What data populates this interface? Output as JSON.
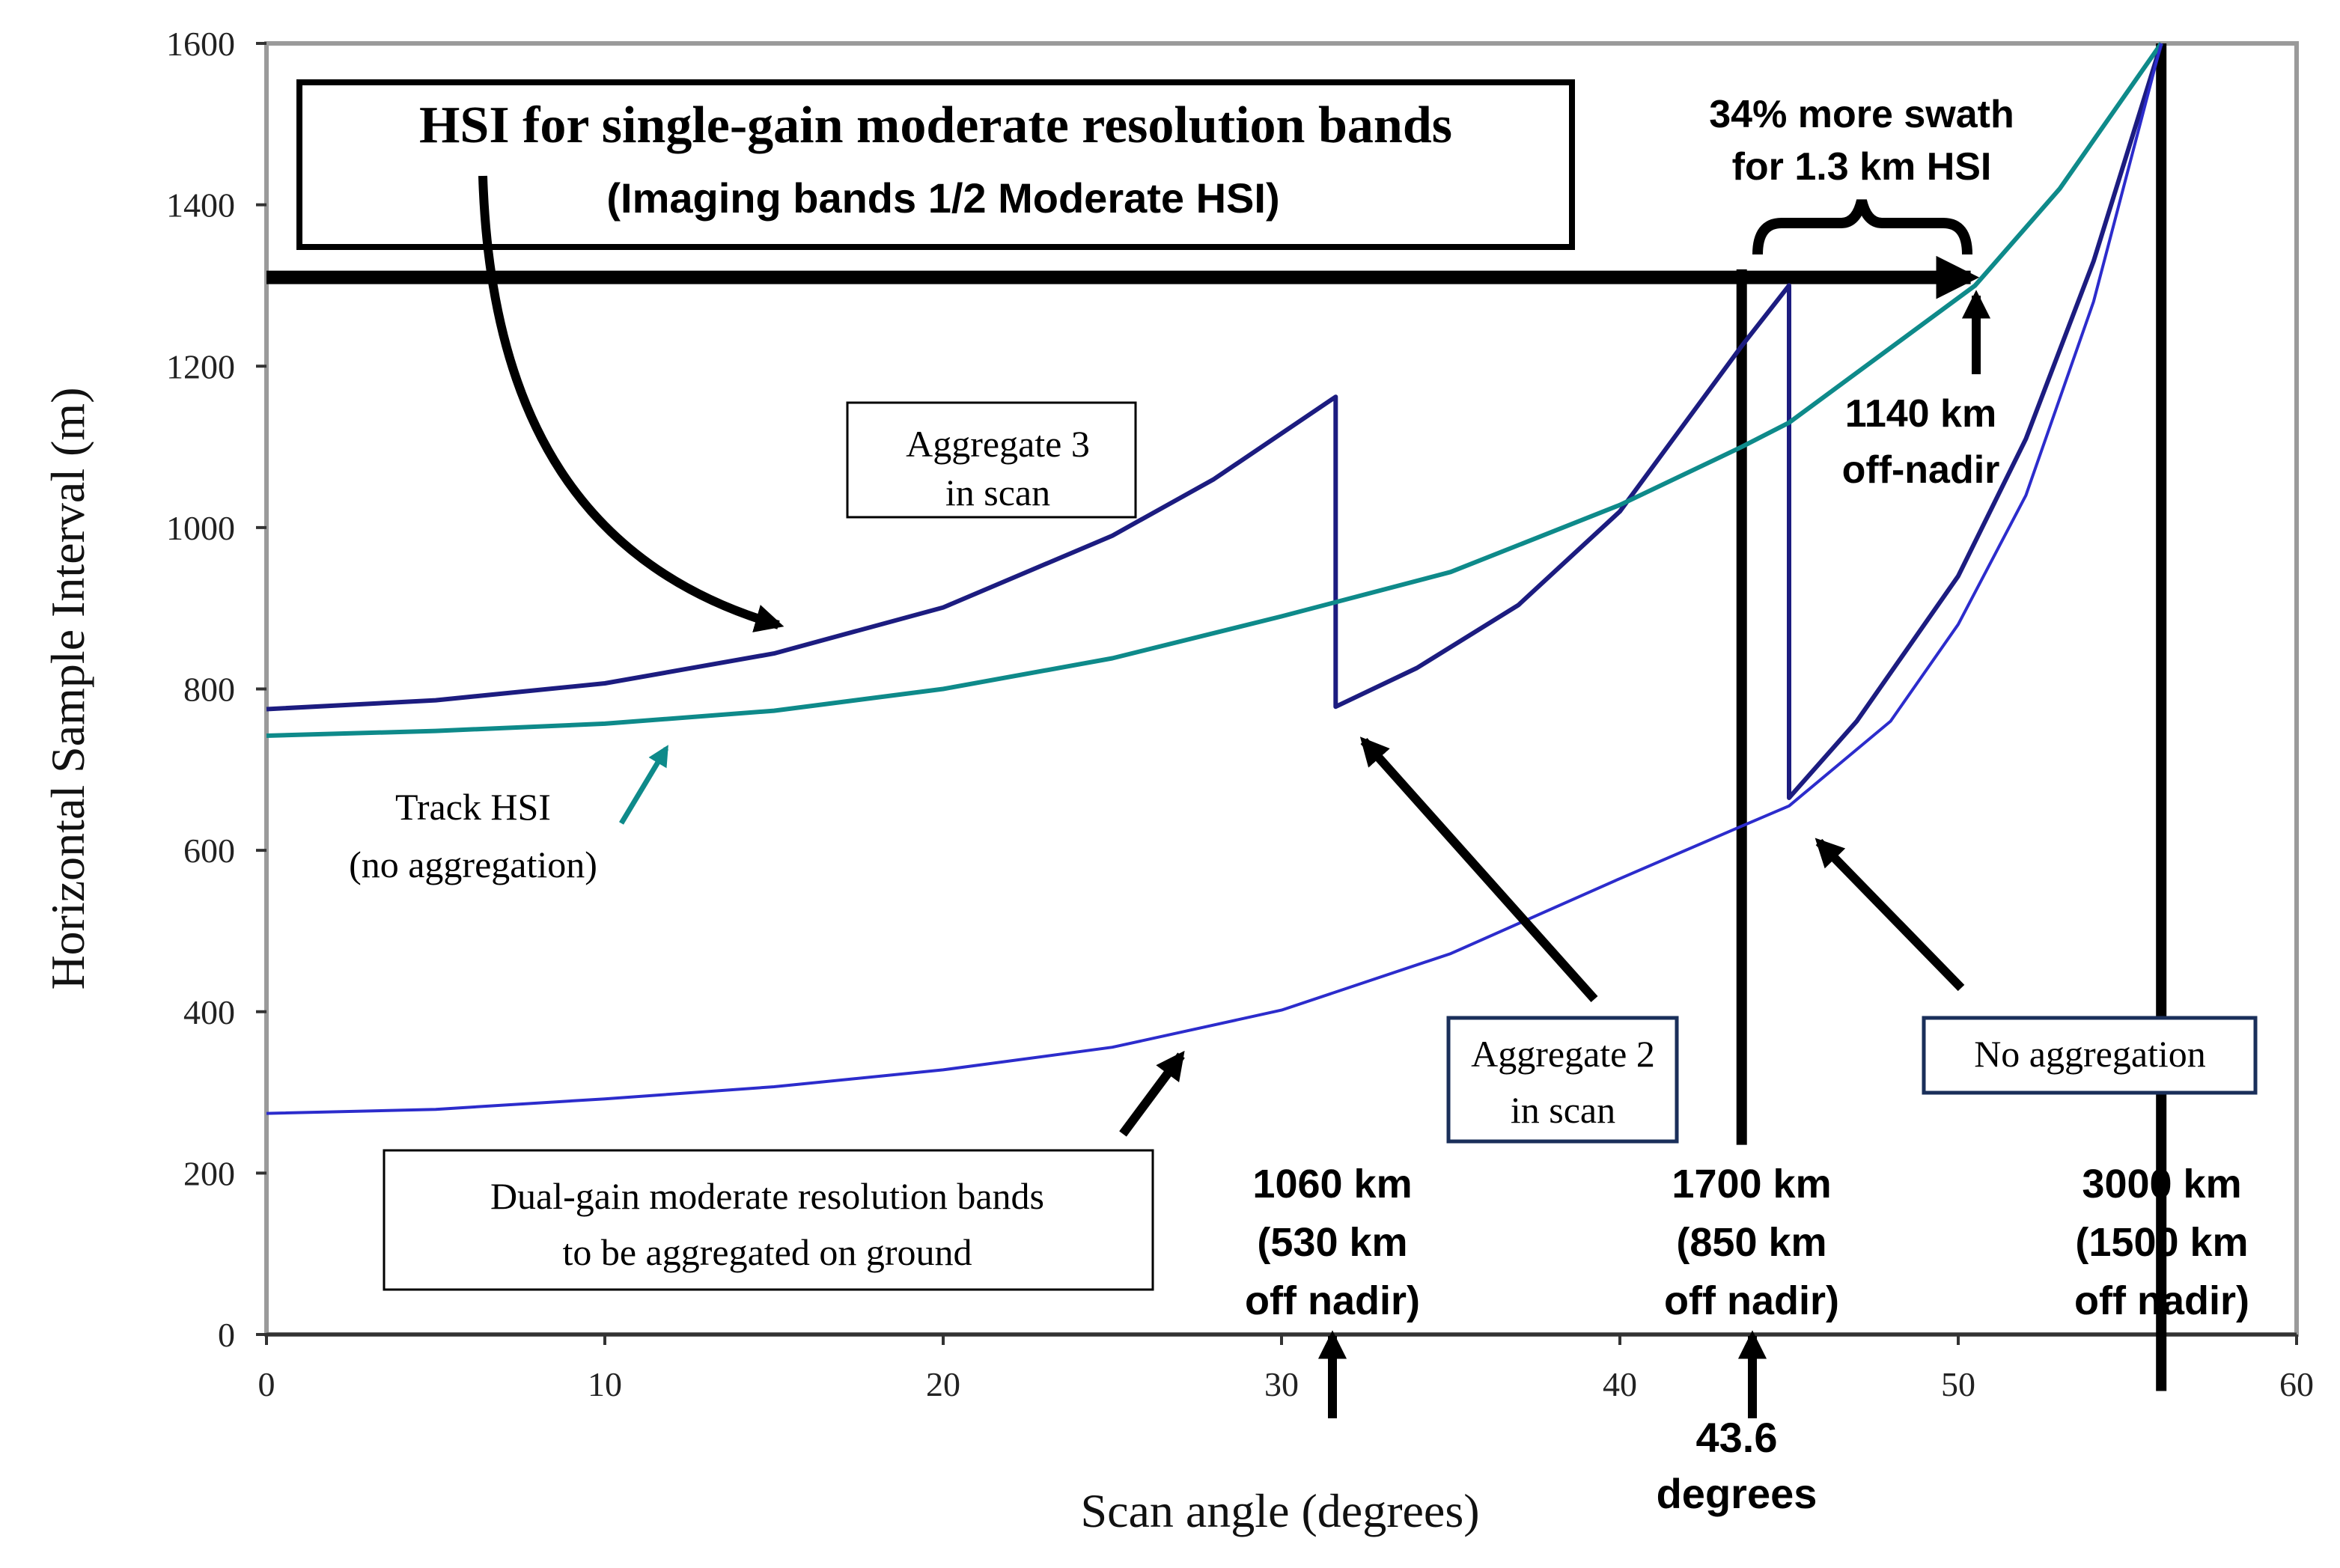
{
  "chart_data": {
    "type": "line",
    "title": "HSI for single-gain moderate resolution bands",
    "subtitle": "(Imaging bands 1/2 Moderate HSI)",
    "xlabel": "Scan angle (degrees)",
    "ylabel": "Horizontal Sample Interval (m)",
    "xlim": [
      0,
      60
    ],
    "ylim": [
      0,
      1600
    ],
    "xticks": [
      "0",
      "10",
      "20",
      "30",
      "40",
      "50",
      "60"
    ],
    "yticks": [
      "0",
      "200",
      "400",
      "600",
      "800",
      "1000",
      "1200",
      "1400",
      "1600"
    ],
    "series": [
      {
        "name": "Aggregate 3 in scan",
        "color": "#1c1c80",
        "x": [
          0,
          5,
          10,
          15,
          20,
          25,
          28,
          31.6,
          31.6,
          34,
          37,
          40,
          43.6,
          45,
          45,
          47,
          50,
          52,
          54,
          56
        ],
        "y": [
          775,
          786,
          807,
          844,
          901,
          990,
          1060,
          1162,
          778,
          826,
          904,
          1020,
          1225,
          1300,
          665,
          760,
          940,
          1110,
          1330,
          1600
        ]
      },
      {
        "name": "Track HSI (no aggregation)",
        "color": "#0e8a8a",
        "x": [
          0,
          5,
          10,
          15,
          20,
          25,
          30,
          35,
          40,
          43.6,
          45,
          50.5,
          53,
          56
        ],
        "y": [
          742,
          748,
          757,
          773,
          800,
          838,
          890,
          945,
          1028,
          1100,
          1130,
          1300,
          1420,
          1600
        ]
      },
      {
        "name": "Dual-gain moderate resolution bands",
        "color": "#2c2ccc",
        "x": [
          0,
          5,
          10,
          15,
          20,
          25,
          30,
          35,
          40,
          43.6,
          45,
          48,
          50,
          52,
          54,
          56
        ],
        "y": [
          274,
          279,
          292,
          307,
          328,
          356,
          402,
          472,
          565,
          630,
          655,
          760,
          880,
          1040,
          1280,
          1600
        ]
      }
    ],
    "vlines": [
      {
        "x": 43.6,
        "from": 235,
        "to": 1320
      },
      {
        "x": 56,
        "from": -70,
        "to": 1600
      }
    ],
    "hline": {
      "y": 1310,
      "from_x": 0,
      "to_x": 50.5
    },
    "annotations": {
      "agg3": [
        "Aggregate 3",
        "in scan"
      ],
      "agg2": [
        "Aggregate 2",
        "in scan"
      ],
      "noagg": "No aggregation",
      "track": [
        "Track HSI",
        "(no aggregation)"
      ],
      "dual": [
        "Dual-gain moderate resolution bands",
        "to be aggregated on ground"
      ],
      "swath": [
        "34% more swath",
        "for 1.3 km HSI"
      ],
      "km1140": [
        "1140 km",
        "off-nadir"
      ],
      "km1060": [
        "1060 km",
        "(530 km",
        "off nadir)"
      ],
      "km1700": [
        "1700 km",
        "(850 km",
        "off nadir)"
      ],
      "km3000": [
        "3000 km",
        "(1500 km",
        "off nadir)"
      ],
      "deg": [
        "43.6",
        "degrees"
      ]
    }
  }
}
